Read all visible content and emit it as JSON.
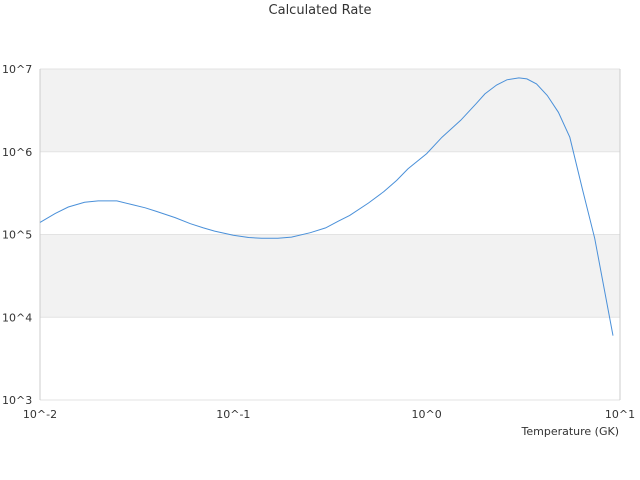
{
  "chart_data": {
    "type": "line",
    "title": "Calculated Rate",
    "xlabel": "Temperature (GK)",
    "ylabel": "",
    "x_scale": "log",
    "y_scale": "log",
    "xlim": [
      0.01,
      10
    ],
    "ylim": [
      1000,
      10000000
    ],
    "x_ticks": [
      "10^-2",
      "10^-1",
      "10^0",
      "10^1"
    ],
    "y_ticks": [
      "10^3",
      "10^4",
      "10^5",
      "10^6",
      "10^7"
    ],
    "grid": "alternating horizontal bands",
    "legend": "none",
    "colors": {
      "line": "#4a90d9",
      "band": "#f2f2f2",
      "axis": "#cccccc"
    },
    "series": [
      {
        "x": [
          0.01,
          0.012,
          0.014,
          0.017,
          0.02,
          0.025,
          0.03,
          0.035,
          0.04,
          0.05,
          0.06,
          0.07,
          0.08,
          0.1,
          0.12,
          0.14,
          0.17,
          0.2,
          0.25,
          0.3,
          0.35,
          0.4,
          0.5,
          0.6,
          0.7,
          0.8,
          1.0,
          1.2,
          1.5,
          1.8,
          2.0,
          2.3,
          2.6,
          3.0,
          3.3,
          3.7,
          4.2,
          4.8,
          5.5,
          6.4,
          7.4,
          9.2
        ],
        "y": [
          140000,
          180000,
          215000,
          245000,
          255000,
          255000,
          230000,
          210000,
          190000,
          160000,
          135000,
          120000,
          110000,
          98000,
          92000,
          90000,
          90000,
          93000,
          105000,
          120000,
          145000,
          170000,
          240000,
          330000,
          450000,
          620000,
          950000,
          1500000,
          2400000,
          3800000,
          5000000,
          6400000,
          7400000,
          7800000,
          7600000,
          6600000,
          4800000,
          3000000,
          1500000,
          350000,
          90000,
          6000
        ]
      }
    ]
  }
}
